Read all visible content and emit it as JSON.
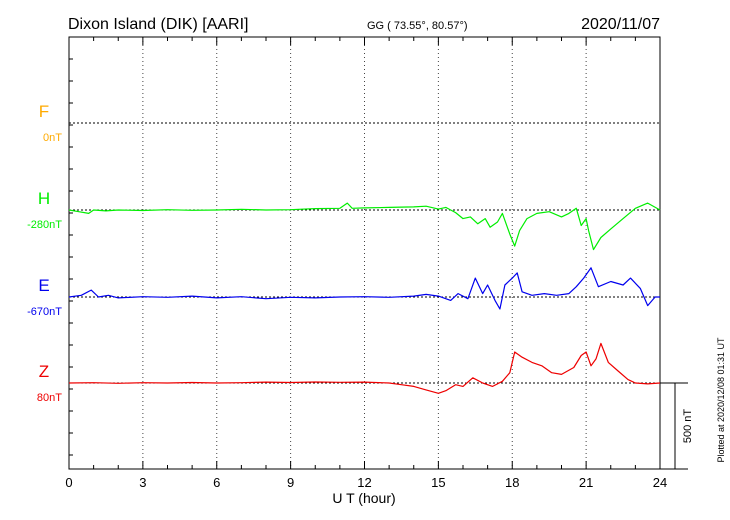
{
  "header": {
    "station": "Dixon Island (DIK)  [AARI]",
    "coords": "GG ( 73.55°,  80.57°)",
    "date": "2020/11/07"
  },
  "plotted_note": "Plotted at 2020/12/08 01:31  UT",
  "chart_data": {
    "type": "line",
    "title": "",
    "xlabel": "U T (hour)",
    "ylabel": "",
    "xlim": [
      0,
      24
    ],
    "x_ticks": [
      0,
      3,
      6,
      9,
      12,
      15,
      18,
      21,
      24
    ],
    "x_tick_labels": [
      "0",
      "3",
      "6",
      "9",
      "12",
      "15",
      "18",
      "21",
      "24"
    ],
    "grid": true,
    "scale_bar": {
      "label": "500 nT",
      "value_nT": 500
    },
    "series": [
      {
        "name": "F",
        "baseline_label": "0nT",
        "baseline_nT": 0,
        "color": "#ffaa00",
        "points": []
      },
      {
        "name": "H",
        "baseline_label": "-280nT",
        "baseline_nT": -280,
        "color": "#00ee00",
        "points": [
          [
            0,
            -280
          ],
          [
            0.4,
            -290
          ],
          [
            0.8,
            -300
          ],
          [
            1.0,
            -280
          ],
          [
            1.5,
            -285
          ],
          [
            2.0,
            -280
          ],
          [
            3.0,
            -283
          ],
          [
            4.0,
            -278
          ],
          [
            5.0,
            -282
          ],
          [
            6.0,
            -280
          ],
          [
            7.0,
            -276
          ],
          [
            8.0,
            -280
          ],
          [
            9.0,
            -278
          ],
          [
            10.0,
            -272
          ],
          [
            11.0,
            -270
          ],
          [
            11.3,
            -240
          ],
          [
            11.5,
            -270
          ],
          [
            12.0,
            -268
          ],
          [
            13.0,
            -265
          ],
          [
            14.0,
            -262
          ],
          [
            14.5,
            -258
          ],
          [
            15.0,
            -275
          ],
          [
            15.3,
            -265
          ],
          [
            15.7,
            -295
          ],
          [
            16.0,
            -330
          ],
          [
            16.3,
            -320
          ],
          [
            16.6,
            -360
          ],
          [
            16.9,
            -330
          ],
          [
            17.1,
            -380
          ],
          [
            17.4,
            -350
          ],
          [
            17.6,
            -300
          ],
          [
            17.9,
            -420
          ],
          [
            18.1,
            -490
          ],
          [
            18.3,
            -400
          ],
          [
            18.6,
            -330
          ],
          [
            19.0,
            -300
          ],
          [
            19.5,
            -290
          ],
          [
            20.0,
            -320
          ],
          [
            20.3,
            -300
          ],
          [
            20.6,
            -270
          ],
          [
            20.8,
            -370
          ],
          [
            21.0,
            -330
          ],
          [
            21.1,
            -400
          ],
          [
            21.3,
            -510
          ],
          [
            21.6,
            -440
          ],
          [
            22.0,
            -390
          ],
          [
            22.5,
            -330
          ],
          [
            23.0,
            -270
          ],
          [
            23.5,
            -240
          ],
          [
            24.0,
            -280
          ]
        ]
      },
      {
        "name": "E",
        "baseline_label": "-670nT",
        "baseline_nT": -670,
        "color": "#0000ee",
        "points": [
          [
            0,
            -670
          ],
          [
            0.5,
            -660
          ],
          [
            0.9,
            -630
          ],
          [
            1.2,
            -670
          ],
          [
            1.6,
            -660
          ],
          [
            2.0,
            -675
          ],
          [
            3.0,
            -668
          ],
          [
            4.0,
            -672
          ],
          [
            5.0,
            -665
          ],
          [
            6.0,
            -675
          ],
          [
            7.0,
            -668
          ],
          [
            8.0,
            -680
          ],
          [
            9.0,
            -672
          ],
          [
            10.0,
            -675
          ],
          [
            11.0,
            -670
          ],
          [
            12.0,
            -668
          ],
          [
            13.0,
            -672
          ],
          [
            14.0,
            -665
          ],
          [
            14.5,
            -655
          ],
          [
            15.0,
            -665
          ],
          [
            15.5,
            -690
          ],
          [
            15.8,
            -650
          ],
          [
            16.2,
            -680
          ],
          [
            16.5,
            -560
          ],
          [
            16.8,
            -650
          ],
          [
            17.0,
            -600
          ],
          [
            17.3,
            -690
          ],
          [
            17.5,
            -740
          ],
          [
            17.7,
            -600
          ],
          [
            18.0,
            -560
          ],
          [
            18.2,
            -530
          ],
          [
            18.4,
            -640
          ],
          [
            18.8,
            -660
          ],
          [
            19.3,
            -650
          ],
          [
            19.8,
            -660
          ],
          [
            20.3,
            -650
          ],
          [
            20.6,
            -610
          ],
          [
            20.9,
            -560
          ],
          [
            21.2,
            -500
          ],
          [
            21.5,
            -610
          ],
          [
            22.0,
            -580
          ],
          [
            22.5,
            -600
          ],
          [
            22.8,
            -560
          ],
          [
            23.2,
            -620
          ],
          [
            23.5,
            -720
          ],
          [
            23.8,
            -670
          ],
          [
            24.0,
            -670
          ]
        ]
      },
      {
        "name": "Z",
        "baseline_label": "80nT",
        "baseline_nT": 80,
        "color": "#ee0000",
        "points": [
          [
            0,
            80
          ],
          [
            1.0,
            82
          ],
          [
            2.0,
            78
          ],
          [
            3.0,
            82
          ],
          [
            4.0,
            80
          ],
          [
            5.0,
            83
          ],
          [
            6.0,
            80
          ],
          [
            7.0,
            82
          ],
          [
            8.0,
            85
          ],
          [
            9.0,
            83
          ],
          [
            10.0,
            86
          ],
          [
            11.0,
            84
          ],
          [
            12.0,
            85
          ],
          [
            13.0,
            80
          ],
          [
            13.5,
            70
          ],
          [
            14.0,
            60
          ],
          [
            14.5,
            40
          ],
          [
            15.0,
            20
          ],
          [
            15.3,
            35
          ],
          [
            15.7,
            70
          ],
          [
            16.0,
            60
          ],
          [
            16.4,
            110
          ],
          [
            16.8,
            80
          ],
          [
            17.2,
            60
          ],
          [
            17.6,
            90
          ],
          [
            17.9,
            140
          ],
          [
            18.1,
            260
          ],
          [
            18.4,
            230
          ],
          [
            18.8,
            200
          ],
          [
            19.2,
            180
          ],
          [
            19.6,
            140
          ],
          [
            20.0,
            130
          ],
          [
            20.5,
            170
          ],
          [
            20.8,
            240
          ],
          [
            21.0,
            260
          ],
          [
            21.2,
            180
          ],
          [
            21.4,
            220
          ],
          [
            21.6,
            310
          ],
          [
            21.9,
            200
          ],
          [
            22.3,
            150
          ],
          [
            22.7,
            100
          ],
          [
            23.0,
            80
          ],
          [
            23.5,
            75
          ],
          [
            24.0,
            80
          ]
        ]
      }
    ]
  }
}
